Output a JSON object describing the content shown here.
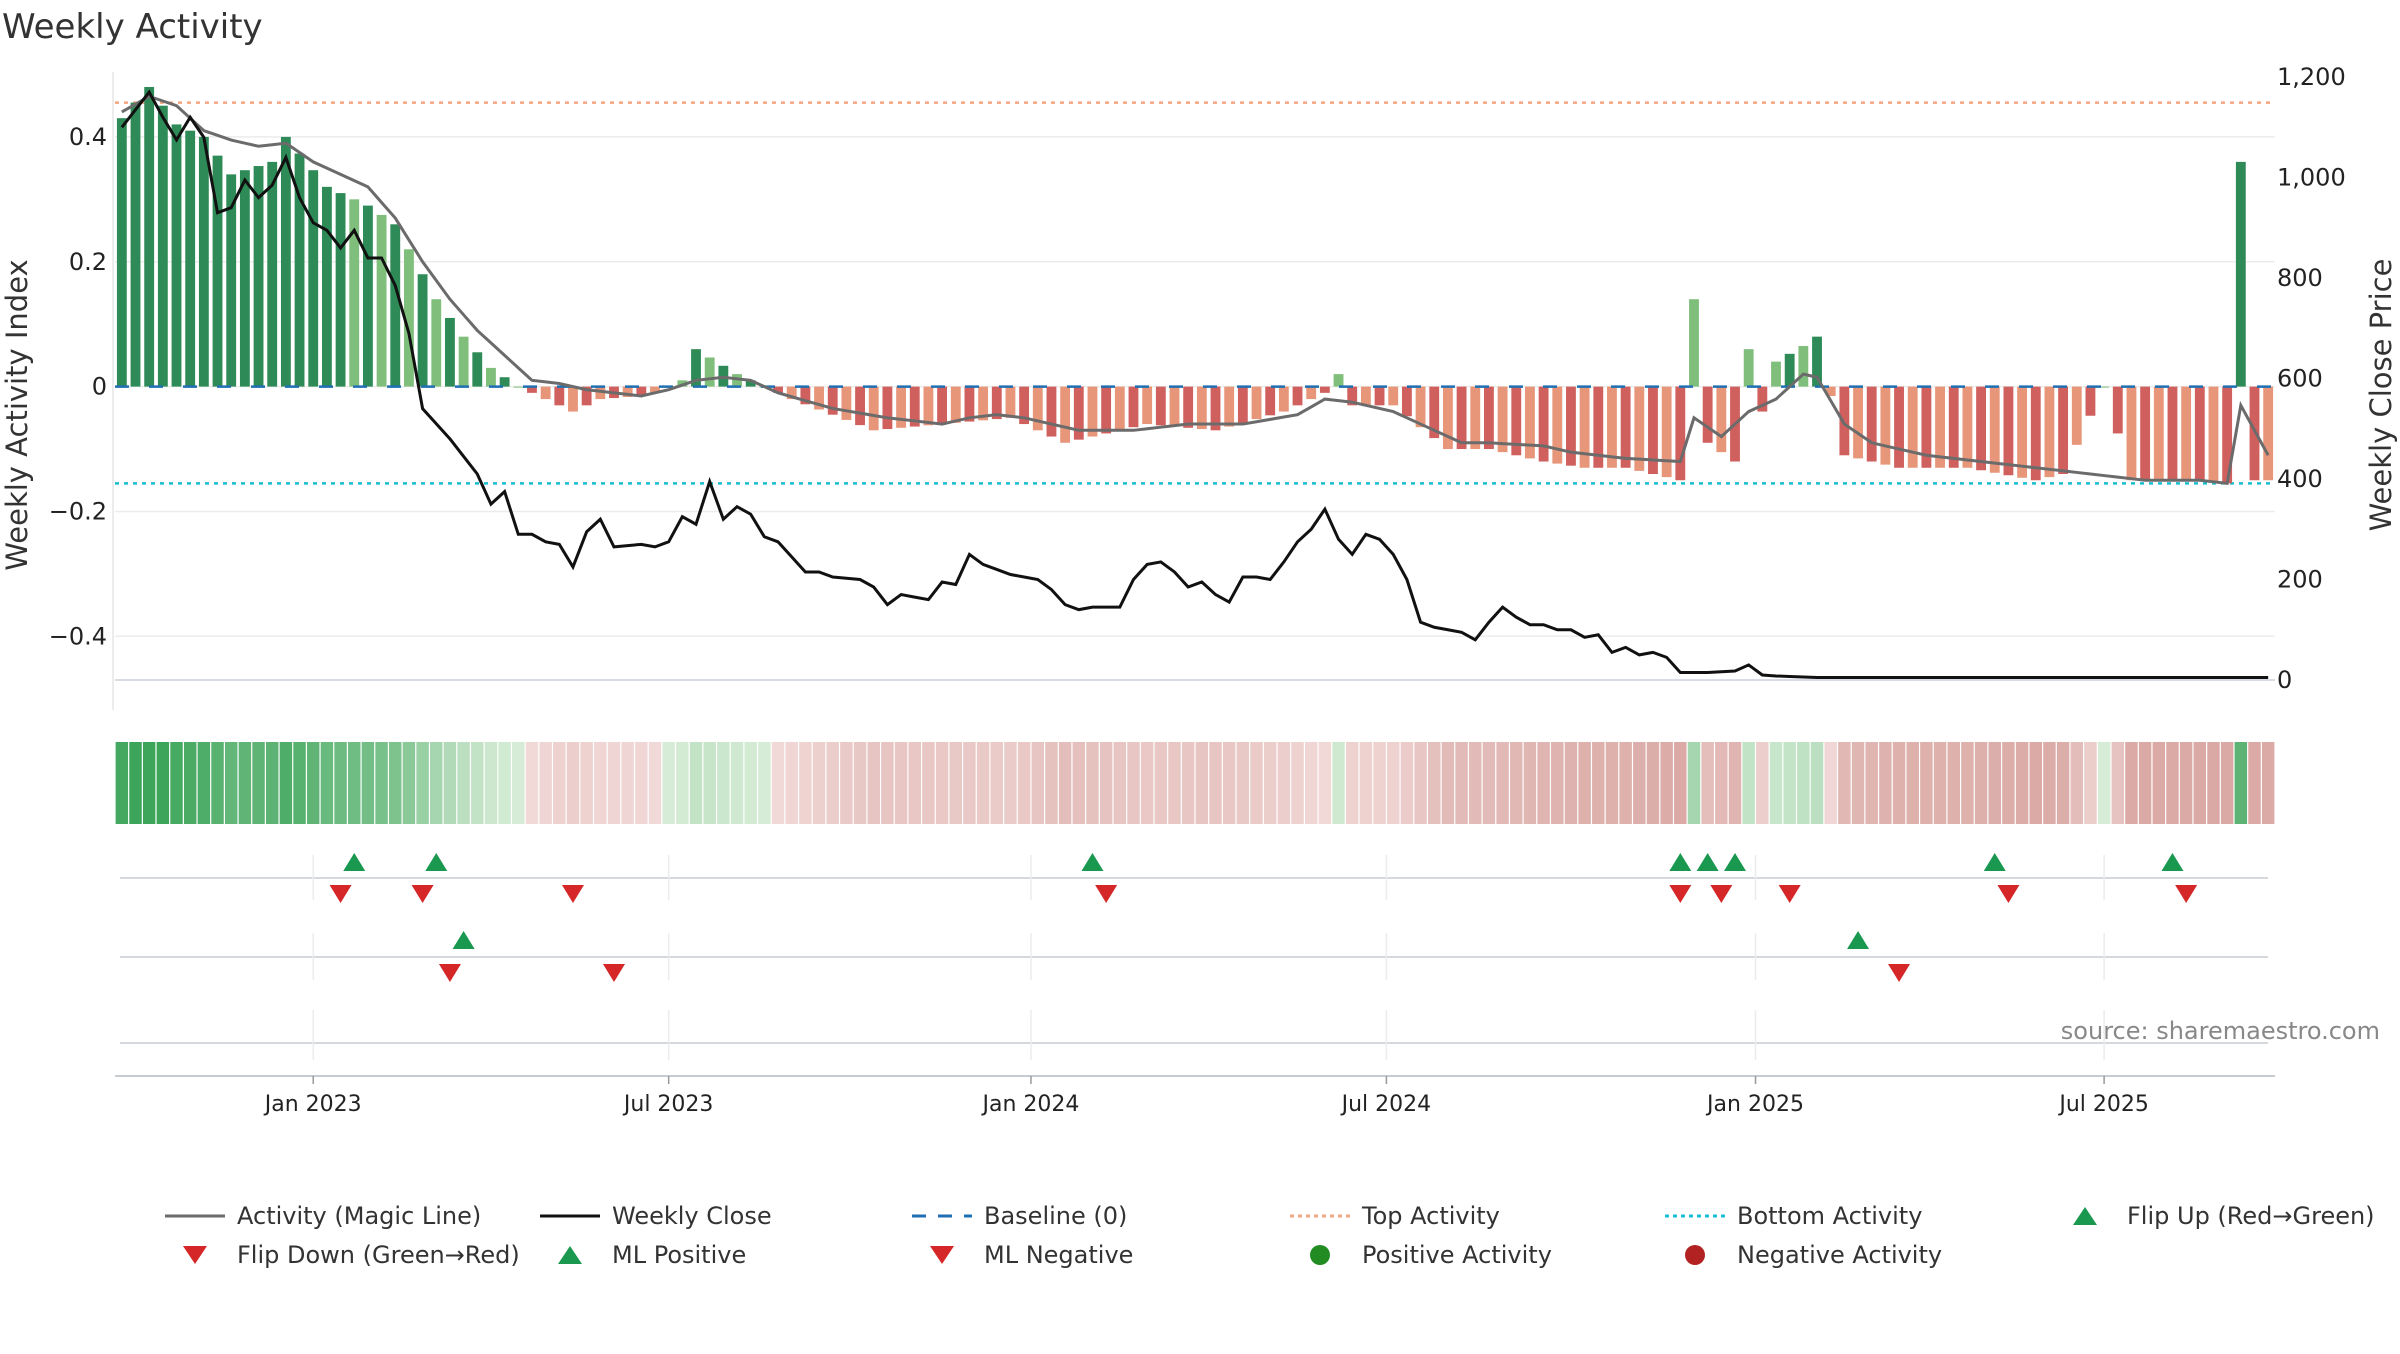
{
  "title": "Weekly Activity",
  "source": "source: sharemaestro.com",
  "colors": {
    "pos_strong": "#2e8b57",
    "pos_light": "#7fbf7b",
    "neg_strong": "#d0605e",
    "neg_light": "#e8967a",
    "magic_line": "#6b6b6b",
    "close_line": "#111111",
    "baseline": "#1f6fb2",
    "top_line": "#f4a582",
    "bottom_line": "#17becf",
    "flip_up": "#1a9850",
    "flip_down": "#d62728"
  },
  "chart_data": {
    "type": "bar",
    "title": "Weekly Activity",
    "ylabel": "Weekly Activity Index",
    "y2label": "Weekly Close Price",
    "ylim": [
      -0.47,
      0.52
    ],
    "y2lim": [
      0,
      1230
    ],
    "yticks": [
      -0.4,
      -0.2,
      0,
      0.2,
      0.4
    ],
    "ytick_labels": [
      "−0.4",
      "−0.2",
      "0",
      "0.2",
      "0.4"
    ],
    "y2ticks": [
      0,
      200,
      400,
      600,
      800,
      1000,
      1200
    ],
    "y2tick_labels": [
      "0",
      "200",
      "400",
      "600",
      "800",
      "1,000",
      "1,200"
    ],
    "xticks": [
      14.5,
      40.5,
      67,
      93,
      120,
      145.5
    ],
    "xtick_labels": [
      "Jan 2023",
      "Jul 2023",
      "Jan 2024",
      "Jul 2024",
      "Jan 2025",
      "Jul 2025"
    ],
    "top_activity": 0.455,
    "bottom_activity": -0.155,
    "weeks": 158,
    "activity_anchors": [
      [
        0,
        0.43
      ],
      [
        2,
        0.48
      ],
      [
        4,
        0.42
      ],
      [
        6,
        0.4
      ],
      [
        8,
        0.34
      ],
      [
        11,
        0.36
      ],
      [
        12,
        0.4
      ],
      [
        15,
        0.32
      ],
      [
        18,
        0.29
      ],
      [
        20,
        0.26
      ],
      [
        23,
        0.14
      ],
      [
        25,
        0.08
      ],
      [
        27,
        0.03
      ],
      [
        29,
        0.0
      ],
      [
        30,
        -0.01
      ],
      [
        33,
        -0.04
      ],
      [
        35,
        -0.02
      ],
      [
        38,
        -0.015
      ],
      [
        39,
        -0.01
      ],
      [
        41,
        0.01
      ],
      [
        42,
        0.06
      ],
      [
        45,
        0.02
      ],
      [
        47,
        0.0
      ],
      [
        49,
        -0.02
      ],
      [
        55,
        -0.07
      ],
      [
        60,
        -0.06
      ],
      [
        65,
        -0.05
      ],
      [
        69,
        -0.09
      ],
      [
        75,
        -0.06
      ],
      [
        80,
        -0.07
      ],
      [
        85,
        -0.04
      ],
      [
        88,
        -0.01
      ],
      [
        89,
        0.02
      ],
      [
        90,
        -0.03
      ],
      [
        93,
        -0.03
      ],
      [
        97,
        -0.1
      ],
      [
        100,
        -0.1
      ],
      [
        104,
        -0.12
      ],
      [
        107,
        -0.13
      ],
      [
        110,
        -0.13
      ],
      [
        114,
        -0.15
      ],
      [
        115,
        0.14
      ],
      [
        116,
        -0.09
      ],
      [
        118,
        -0.12
      ],
      [
        119,
        0.06
      ],
      [
        120,
        -0.04
      ],
      [
        121,
        0.04
      ],
      [
        123,
        0.065
      ],
      [
        124,
        0.08
      ],
      [
        126,
        -0.11
      ],
      [
        130,
        -0.13
      ],
      [
        135,
        -0.13
      ],
      [
        140,
        -0.15
      ],
      [
        142,
        -0.14
      ],
      [
        145,
        0.0
      ],
      [
        147,
        -0.15
      ],
      [
        152,
        -0.15
      ],
      [
        154,
        -0.155
      ],
      [
        155,
        0.36
      ],
      [
        156,
        -0.15
      ],
      [
        157,
        -0.15
      ]
    ],
    "magic_anchors": [
      [
        0,
        0.44
      ],
      [
        2,
        0.465
      ],
      [
        4,
        0.45
      ],
      [
        6,
        0.41
      ],
      [
        8,
        0.395
      ],
      [
        10,
        0.385
      ],
      [
        12,
        0.39
      ],
      [
        14,
        0.36
      ],
      [
        16,
        0.34
      ],
      [
        18,
        0.32
      ],
      [
        20,
        0.27
      ],
      [
        22,
        0.2
      ],
      [
        24,
        0.14
      ],
      [
        26,
        0.09
      ],
      [
        28,
        0.05
      ],
      [
        30,
        0.01
      ],
      [
        32,
        0.005
      ],
      [
        34,
        -0.005
      ],
      [
        36,
        -0.01
      ],
      [
        38,
        -0.015
      ],
      [
        40,
        -0.005
      ],
      [
        42,
        0.01
      ],
      [
        44,
        0.015
      ],
      [
        46,
        0.01
      ],
      [
        48,
        -0.01
      ],
      [
        52,
        -0.035
      ],
      [
        56,
        -0.05
      ],
      [
        60,
        -0.06
      ],
      [
        62,
        -0.05
      ],
      [
        64,
        -0.045
      ],
      [
        66,
        -0.05
      ],
      [
        68,
        -0.06
      ],
      [
        70,
        -0.07
      ],
      [
        74,
        -0.07
      ],
      [
        78,
        -0.06
      ],
      [
        82,
        -0.06
      ],
      [
        86,
        -0.045
      ],
      [
        88,
        -0.02
      ],
      [
        90,
        -0.025
      ],
      [
        93,
        -0.04
      ],
      [
        96,
        -0.07
      ],
      [
        98,
        -0.09
      ],
      [
        100,
        -0.09
      ],
      [
        104,
        -0.095
      ],
      [
        106,
        -0.105
      ],
      [
        110,
        -0.115
      ],
      [
        114,
        -0.12
      ],
      [
        115,
        -0.05
      ],
      [
        117,
        -0.08
      ],
      [
        119,
        -0.04
      ],
      [
        121,
        -0.02
      ],
      [
        123,
        0.02
      ],
      [
        124,
        0.015
      ],
      [
        126,
        -0.06
      ],
      [
        128,
        -0.09
      ],
      [
        132,
        -0.11
      ],
      [
        136,
        -0.12
      ],
      [
        140,
        -0.13
      ],
      [
        144,
        -0.14
      ],
      [
        146,
        -0.145
      ],
      [
        148,
        -0.15
      ],
      [
        150,
        -0.15
      ],
      [
        152,
        -0.15
      ],
      [
        154,
        -0.155
      ],
      [
        155,
        -0.03
      ],
      [
        157,
        -0.11
      ]
    ],
    "close_anchors": [
      [
        0,
        1100
      ],
      [
        2,
        1170
      ],
      [
        3,
        1120
      ],
      [
        4,
        1075
      ],
      [
        5,
        1120
      ],
      [
        6,
        1080
      ],
      [
        7,
        930
      ],
      [
        8,
        940
      ],
      [
        9,
        995
      ],
      [
        10,
        960
      ],
      [
        11,
        985
      ],
      [
        12,
        1040
      ],
      [
        13,
        960
      ],
      [
        14,
        910
      ],
      [
        15,
        895
      ],
      [
        16,
        860
      ],
      [
        17,
        895
      ],
      [
        18,
        840
      ],
      [
        19,
        840
      ],
      [
        20,
        785
      ],
      [
        21,
        690
      ],
      [
        22,
        540
      ],
      [
        24,
        480
      ],
      [
        26,
        410
      ],
      [
        27,
        350
      ],
      [
        28,
        375
      ],
      [
        29,
        290
      ],
      [
        30,
        290
      ],
      [
        31,
        275
      ],
      [
        32,
        270
      ],
      [
        33,
        225
      ],
      [
        34,
        295
      ],
      [
        35,
        320
      ],
      [
        36,
        265
      ],
      [
        38,
        270
      ],
      [
        39,
        265
      ],
      [
        40,
        275
      ],
      [
        41,
        325
      ],
      [
        42,
        310
      ],
      [
        43,
        395
      ],
      [
        44,
        320
      ],
      [
        45,
        345
      ],
      [
        46,
        330
      ],
      [
        47,
        285
      ],
      [
        48,
        275
      ],
      [
        50,
        215
      ],
      [
        51,
        215
      ],
      [
        52,
        205
      ],
      [
        54,
        200
      ],
      [
        55,
        185
      ],
      [
        56,
        150
      ],
      [
        57,
        170
      ],
      [
        59,
        160
      ],
      [
        60,
        195
      ],
      [
        61,
        190
      ],
      [
        62,
        250
      ],
      [
        63,
        230
      ],
      [
        65,
        210
      ],
      [
        67,
        200
      ],
      [
        68,
        180
      ],
      [
        69,
        150
      ],
      [
        70,
        140
      ],
      [
        71,
        145
      ],
      [
        73,
        145
      ],
      [
        74,
        200
      ],
      [
        75,
        230
      ],
      [
        76,
        235
      ],
      [
        77,
        215
      ],
      [
        78,
        185
      ],
      [
        79,
        195
      ],
      [
        80,
        170
      ],
      [
        81,
        155
      ],
      [
        82,
        205
      ],
      [
        83,
        205
      ],
      [
        84,
        200
      ],
      [
        85,
        235
      ],
      [
        86,
        275
      ],
      [
        87,
        300
      ],
      [
        88,
        340
      ],
      [
        89,
        280
      ],
      [
        90,
        250
      ],
      [
        91,
        290
      ],
      [
        92,
        280
      ],
      [
        93,
        250
      ],
      [
        94,
        200
      ],
      [
        95,
        115
      ],
      [
        96,
        105
      ],
      [
        97,
        100
      ],
      [
        98,
        95
      ],
      [
        99,
        80
      ],
      [
        100,
        115
      ],
      [
        101,
        145
      ],
      [
        102,
        125
      ],
      [
        103,
        110
      ],
      [
        104,
        110
      ],
      [
        105,
        100
      ],
      [
        106,
        100
      ],
      [
        107,
        85
      ],
      [
        108,
        90
      ],
      [
        109,
        55
      ],
      [
        110,
        65
      ],
      [
        111,
        50
      ],
      [
        112,
        55
      ],
      [
        113,
        45
      ],
      [
        114,
        15
      ],
      [
        115,
        15
      ],
      [
        116,
        15
      ],
      [
        118,
        18
      ],
      [
        119,
        30
      ],
      [
        120,
        10
      ],
      [
        121,
        8
      ],
      [
        124,
        5
      ],
      [
        130,
        5
      ],
      [
        157,
        5
      ]
    ],
    "flip_up": [
      17,
      23,
      71,
      114,
      116,
      118,
      137,
      150
    ],
    "flip_down": [
      16,
      22,
      33,
      72,
      114,
      117,
      122,
      138,
      151
    ],
    "ml_positive": [
      25,
      127
    ],
    "ml_negative": [
      24,
      36,
      130
    ]
  },
  "legend": [
    {
      "label": "Activity (Magic Line)",
      "kind": "line"
    },
    {
      "label": "Weekly Close",
      "kind": "line"
    },
    {
      "label": "Baseline (0)",
      "kind": "dash"
    },
    {
      "label": "Top Activity",
      "kind": "dotted"
    },
    {
      "label": "Bottom Activity",
      "kind": "dotted"
    },
    {
      "label": "Flip Up (Red→Green)",
      "kind": "tri-up"
    },
    {
      "label": "Flip Down (Green→Red)",
      "kind": "tri-down"
    },
    {
      "label": "ML Positive",
      "kind": "tri-up"
    },
    {
      "label": "ML Negative",
      "kind": "tri-down"
    },
    {
      "label": "Positive Activity",
      "kind": "dot"
    },
    {
      "label": "Negative Activity",
      "kind": "dot"
    }
  ]
}
